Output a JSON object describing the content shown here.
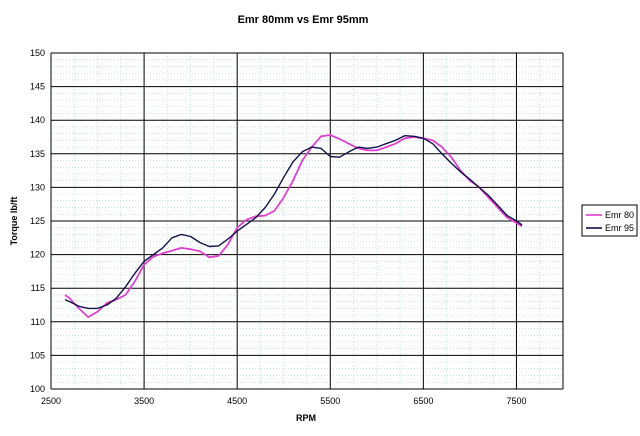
{
  "chart_data": {
    "type": "line",
    "title": "Emr 80mm vs Emr 95mm",
    "xlabel": "RPM",
    "ylabel": "Torque lb/ft",
    "xlim": [
      2500,
      8000
    ],
    "ylim": [
      100,
      150
    ],
    "xticks": [
      2500,
      3500,
      4500,
      5500,
      6500,
      7500
    ],
    "yticks": [
      100,
      105,
      110,
      115,
      120,
      125,
      130,
      135,
      140,
      145,
      150
    ],
    "x_tick_labels": [
      "2500",
      "3500",
      "4500",
      "5500",
      "6500",
      "7500"
    ],
    "y_tick_labels": [
      "100",
      "105",
      "110",
      "115",
      "120",
      "125",
      "130",
      "135",
      "140",
      "145",
      "150"
    ],
    "grid": "major gridlines on, minor dashed gridlines",
    "legend_position": "right",
    "series": [
      {
        "name": "Emr 80",
        "color": "#e040d0",
        "x": [
          2650,
          2700,
          2800,
          2900,
          3000,
          3100,
          3200,
          3300,
          3400,
          3500,
          3600,
          3700,
          3800,
          3900,
          4000,
          4100,
          4200,
          4300,
          4400,
          4500,
          4600,
          4700,
          4800,
          4900,
          5000,
          5100,
          5200,
          5300,
          5400,
          5500,
          5600,
          5700,
          5800,
          5900,
          6000,
          6100,
          6200,
          6300,
          6400,
          6500,
          6600,
          6700,
          6800,
          6900,
          7000,
          7100,
          7200,
          7300,
          7400,
          7500,
          7560
        ],
        "y": [
          114.0,
          113.5,
          112.0,
          110.7,
          111.5,
          112.8,
          113.3,
          114.0,
          116.0,
          118.5,
          119.7,
          120.2,
          120.6,
          121.0,
          120.8,
          120.5,
          119.6,
          119.8,
          121.5,
          124.0,
          125.2,
          125.7,
          125.8,
          126.5,
          128.5,
          131.0,
          134.0,
          136.0,
          137.6,
          137.8,
          137.2,
          136.5,
          135.8,
          135.5,
          135.5,
          136.0,
          136.5,
          137.3,
          137.5,
          137.3,
          137.0,
          136.0,
          134.5,
          132.5,
          131.0,
          130.0,
          128.5,
          127.0,
          125.5,
          124.7,
          124.2
        ]
      },
      {
        "name": "Emr 95",
        "color": "#10104a",
        "x": [
          2650,
          2700,
          2800,
          2900,
          3000,
          3100,
          3200,
          3300,
          3400,
          3500,
          3600,
          3700,
          3800,
          3900,
          4000,
          4100,
          4200,
          4300,
          4400,
          4500,
          4600,
          4700,
          4800,
          4900,
          5000,
          5100,
          5200,
          5300,
          5400,
          5500,
          5600,
          5700,
          5800,
          5900,
          6000,
          6100,
          6200,
          6300,
          6400,
          6500,
          6600,
          6700,
          6800,
          6900,
          7000,
          7100,
          7200,
          7300,
          7400,
          7500,
          7560
        ],
        "y": [
          113.3,
          113.0,
          112.3,
          112.0,
          112.0,
          112.5,
          113.5,
          115.2,
          117.2,
          119.0,
          120.0,
          121.0,
          122.5,
          123.0,
          122.7,
          121.8,
          121.2,
          121.3,
          122.3,
          123.5,
          124.5,
          125.5,
          127.0,
          129.0,
          131.5,
          133.8,
          135.3,
          136.0,
          135.8,
          134.6,
          134.5,
          135.3,
          136.0,
          135.8,
          136.0,
          136.5,
          137.0,
          137.7,
          137.6,
          137.3,
          136.5,
          135.0,
          133.6,
          132.3,
          131.2,
          130.0,
          128.8,
          127.3,
          125.8,
          125.0,
          124.4
        ]
      }
    ]
  }
}
